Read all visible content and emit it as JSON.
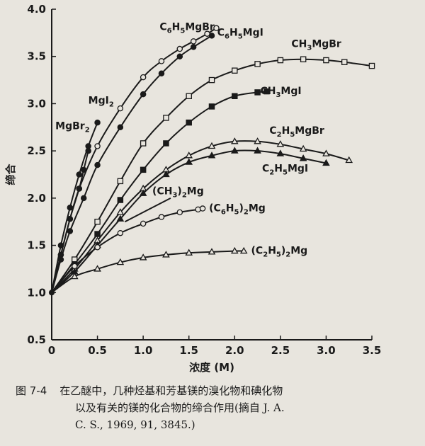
{
  "chart_data": {
    "type": "line",
    "xlabel": "浓度 (M)",
    "ylabel": "缔合",
    "xlim": [
      0,
      3.5
    ],
    "ylim": [
      0.5,
      4.0
    ],
    "x_ticks": [
      "0",
      "0.5",
      "1.0",
      "1.5",
      "2.0",
      "2.5",
      "3.0",
      "3.5"
    ],
    "y_ticks": [
      "0.5",
      "1.0",
      "1.5",
      "2.0",
      "2.5",
      "3.0",
      "3.5",
      "4.0"
    ],
    "series": [
      {
        "name": "C6H5MgBr",
        "marker": "circle-open",
        "x": [
          0,
          0.1,
          0.2,
          0.3,
          0.5,
          0.75,
          1.0,
          1.2,
          1.4,
          1.55,
          1.7,
          1.8
        ],
        "y": [
          1.0,
          1.4,
          1.78,
          2.1,
          2.55,
          2.95,
          3.28,
          3.45,
          3.58,
          3.66,
          3.74,
          3.8
        ]
      },
      {
        "name": "C6H5MgI",
        "marker": "circle-filled",
        "x": [
          0,
          0.1,
          0.2,
          0.35,
          0.5,
          0.75,
          1.0,
          1.2,
          1.4,
          1.55,
          1.75
        ],
        "y": [
          1.0,
          1.35,
          1.65,
          2.0,
          2.35,
          2.75,
          3.1,
          3.32,
          3.5,
          3.6,
          3.72
        ]
      },
      {
        "name": "MgI2",
        "marker": "circle-filled",
        "x": [
          0,
          0.1,
          0.2,
          0.3,
          0.4,
          0.5
        ],
        "y": [
          1.0,
          1.5,
          1.9,
          2.25,
          2.55,
          2.8
        ]
      },
      {
        "name": "MgBr2",
        "marker": "circle-filled",
        "x": [
          0,
          0.1,
          0.2,
          0.3,
          0.35,
          0.4
        ],
        "y": [
          1.0,
          1.4,
          1.78,
          2.1,
          2.3,
          2.5
        ]
      },
      {
        "name": "CH3MgBr",
        "marker": "square-open",
        "x": [
          0,
          0.25,
          0.5,
          0.75,
          1.0,
          1.25,
          1.5,
          1.75,
          2.0,
          2.25,
          2.5,
          2.75,
          3.0,
          3.2,
          3.5
        ],
        "y": [
          1.0,
          1.35,
          1.75,
          2.18,
          2.58,
          2.85,
          3.08,
          3.25,
          3.35,
          3.42,
          3.46,
          3.47,
          3.46,
          3.44,
          3.4
        ]
      },
      {
        "name": "CH3MgI",
        "marker": "square-filled",
        "x": [
          0,
          0.25,
          0.5,
          0.75,
          1.0,
          1.25,
          1.5,
          1.75,
          2.0,
          2.25,
          2.35
        ],
        "y": [
          1.0,
          1.3,
          1.62,
          1.98,
          2.3,
          2.58,
          2.8,
          2.97,
          3.08,
          3.12,
          3.13
        ]
      },
      {
        "name": "C2H5MgBr",
        "marker": "triangle-open",
        "x": [
          0,
          0.25,
          0.5,
          0.75,
          1.0,
          1.25,
          1.5,
          1.75,
          2.0,
          2.25,
          2.5,
          2.75,
          3.0,
          3.25
        ],
        "y": [
          1.0,
          1.25,
          1.55,
          1.85,
          2.1,
          2.3,
          2.45,
          2.55,
          2.6,
          2.6,
          2.57,
          2.52,
          2.47,
          2.4
        ]
      },
      {
        "name": "C2H5MgI",
        "marker": "triangle-filled",
        "x": [
          0,
          0.25,
          0.5,
          0.75,
          1.0,
          1.25,
          1.5,
          1.75,
          2.0,
          2.25,
          2.5,
          2.75,
          3.0
        ],
        "y": [
          1.0,
          1.22,
          1.5,
          1.78,
          2.05,
          2.25,
          2.38,
          2.45,
          2.5,
          2.5,
          2.47,
          2.42,
          2.37
        ]
      },
      {
        "name": "(CH3)2Mg",
        "marker": "none",
        "x": [
          0.8,
          1.3
        ],
        "y": [
          1.75,
          2.0
        ]
      },
      {
        "name": "(C6H5)2Mg",
        "marker": "circle-open",
        "x": [
          0,
          0.25,
          0.5,
          0.75,
          1.0,
          1.2,
          1.4,
          1.6,
          1.65
        ],
        "y": [
          1.0,
          1.28,
          1.48,
          1.63,
          1.73,
          1.8,
          1.85,
          1.88,
          1.89
        ]
      },
      {
        "name": "(C2H5)2Mg",
        "marker": "triangle-open",
        "x": [
          0,
          0.25,
          0.5,
          0.75,
          1.0,
          1.25,
          1.5,
          1.75,
          2.0,
          2.1
        ],
        "y": [
          1.0,
          1.17,
          1.25,
          1.32,
          1.37,
          1.4,
          1.42,
          1.43,
          1.44,
          1.44
        ]
      }
    ],
    "labels": [
      {
        "series": "C6H5MgBr",
        "text": "C6H5MgBr",
        "at": [
          1.18,
          3.78
        ]
      },
      {
        "series": "C6H5MgI",
        "text": "C6H5MgI",
        "at": [
          1.81,
          3.72
        ]
      },
      {
        "series": "MgI2",
        "text": "MgI2",
        "at": [
          0.4,
          3.0
        ]
      },
      {
        "series": "MgBr2",
        "text": "MgBr2",
        "at": [
          0.04,
          2.73
        ]
      },
      {
        "series": "CH3MgBr",
        "text": "CH3MgBr",
        "at": [
          2.62,
          3.6
        ]
      },
      {
        "series": "CH3MgI",
        "text": "CH3MgI",
        "at": [
          2.28,
          3.1
        ]
      },
      {
        "series": "C2H5MgBr",
        "text": "C2H5MgBr",
        "at": [
          2.38,
          2.68
        ]
      },
      {
        "series": "C2H5MgI",
        "text": "C2H5MgI",
        "at": [
          2.3,
          2.28
        ]
      },
      {
        "series": "(CH3)2Mg",
        "text": "(CH3)2Mg",
        "at": [
          1.1,
          2.04
        ]
      },
      {
        "series": "(C6H5)2Mg",
        "text": "(C6H5)2Mg",
        "at": [
          1.72,
          1.86
        ]
      },
      {
        "series": "(C2H5)2Mg",
        "text": "(C2H5)2Mg",
        "at": [
          2.18,
          1.41
        ]
      }
    ]
  },
  "caption": {
    "figure_number": "图 7-4",
    "line1": "在乙醚中，几种烃基和芳基镁的溴化物和碘化物",
    "line2": "以及有关的镁的化合物的缔合作用(摘自 J. A.",
    "line3": "C. S., 1969, 91, 3845.)"
  },
  "colors": {
    "ink": "#1a1a1a",
    "paper": "#e8e5de"
  }
}
